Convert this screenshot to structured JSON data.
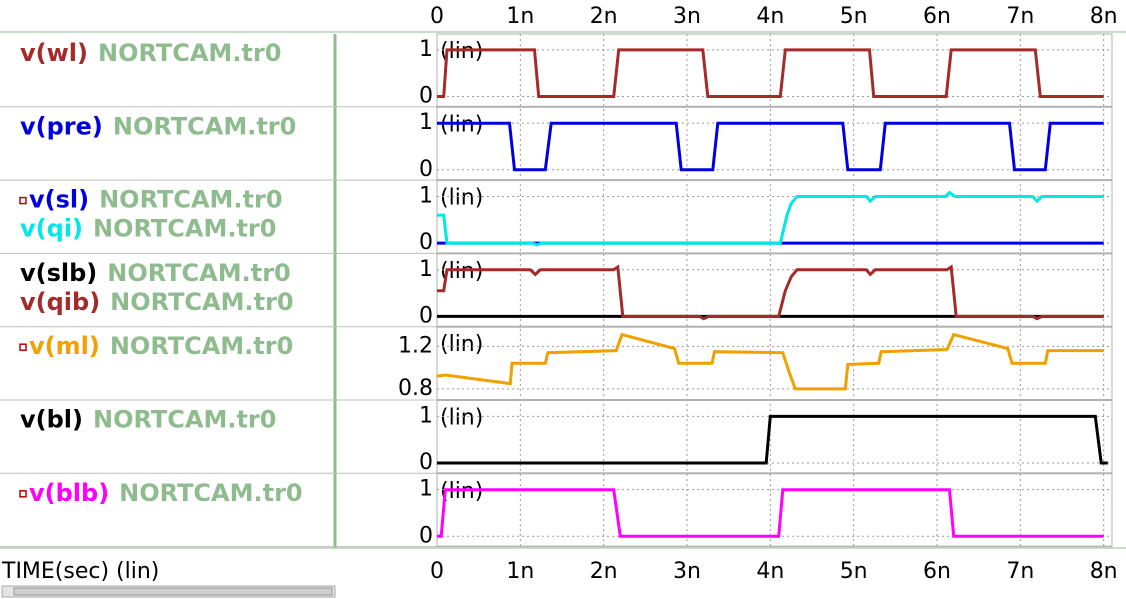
{
  "time_axis": {
    "label": "TIME(sec) (lin)",
    "xlim": [
      0,
      8.1e-09
    ],
    "xticks": [
      {
        "value": 0,
        "label": "0"
      },
      {
        "value": 1e-09,
        "label": "1n"
      },
      {
        "value": 2e-09,
        "label": "2n"
      },
      {
        "value": 3e-09,
        "label": "3n"
      },
      {
        "value": 4e-09,
        "label": "4n"
      },
      {
        "value": 5e-09,
        "label": "5n"
      },
      {
        "value": 6e-09,
        "label": "6n"
      },
      {
        "value": 7e-09,
        "label": "7n"
      },
      {
        "value": 8e-09,
        "label": "8n"
      }
    ]
  },
  "chart_data": [
    {
      "type": "line",
      "scale_label": "(lin)",
      "ylim": [
        -0.21,
        1.34
      ],
      "yticks": [
        0,
        1
      ],
      "grid": true,
      "series": [
        {
          "name": "v(wl)",
          "file": "NORTCAM.tr0",
          "color": "#a52a2a",
          "x": [
            0,
            8e-11,
            1.2e-10,
            1.17e-09,
            1.22e-09,
            2.12e-09,
            2.18e-09,
            3.19e-09,
            3.25e-09,
            4.12e-09,
            4.18e-09,
            5.19e-09,
            5.24e-09,
            6.11e-09,
            6.17e-09,
            7.18e-09,
            7.24e-09,
            8e-09
          ],
          "values": [
            0,
            0,
            1,
            1,
            0,
            0,
            1,
            1,
            0,
            0,
            1,
            1,
            0,
            0,
            1,
            1,
            0,
            0
          ]
        }
      ]
    },
    {
      "type": "line",
      "scale_label": "(lin)",
      "ylim": [
        -0.21,
        1.34
      ],
      "yticks": [
        0,
        1
      ],
      "grid": true,
      "series": [
        {
          "name": "v(pre)",
          "file": "NORTCAM.tr0",
          "color": "#0000e0",
          "x": [
            0,
            8.7e-10,
            9.3e-10,
            1.3e-09,
            1.37e-09,
            2.87e-09,
            2.93e-09,
            3.31e-09,
            3.37e-09,
            4.87e-09,
            4.93e-09,
            5.32e-09,
            5.38e-09,
            6.87e-09,
            6.93e-09,
            7.3e-09,
            7.36e-09,
            8e-09
          ],
          "values": [
            1,
            1,
            0,
            0,
            1,
            1,
            0,
            0,
            1,
            1,
            0,
            0,
            1,
            1,
            0,
            0,
            1,
            1
          ]
        }
      ]
    },
    {
      "type": "line",
      "scale_label": "(lin)",
      "ylim": [
        -0.21,
        1.34
      ],
      "yticks": [
        0,
        1
      ],
      "grid": true,
      "series": [
        {
          "name": "v(sl)",
          "file": "NORTCAM.tr0",
          "color": "#0000e0",
          "x": [
            0,
            8e-09
          ],
          "values": [
            0,
            0
          ]
        },
        {
          "name": "v(qi)",
          "file": "NORTCAM.tr0",
          "color": "#00e8e8",
          "x": [
            0,
            8e-11,
            1.2e-10,
            1.15e-09,
            1.2e-09,
            1.25e-09,
            4.12e-09,
            4.2e-09,
            4.25e-09,
            4.32e-09,
            5.15e-09,
            5.2e-09,
            5.26e-09,
            6.1e-09,
            6.15e-09,
            6.22e-09,
            7.15e-09,
            7.2e-09,
            7.26e-09,
            8e-09
          ],
          "values": [
            0.6,
            0.6,
            0,
            0,
            -0.04,
            0,
            0,
            0.6,
            0.85,
            1,
            1,
            0.9,
            1,
            1,
            1.08,
            1,
            1,
            0.9,
            1,
            1
          ]
        }
      ]
    },
    {
      "type": "line",
      "scale_label": "(lin)",
      "ylim": [
        -0.21,
        1.34
      ],
      "yticks": [
        0,
        1
      ],
      "grid": true,
      "series": [
        {
          "name": "v(slb)",
          "file": "NORTCAM.tr0",
          "color": "#000000",
          "x": [
            0,
            8e-09
          ],
          "values": [
            0,
            0
          ]
        },
        {
          "name": "v(qib)",
          "file": "NORTCAM.tr0",
          "color": "#a52a2a",
          "x": [
            0,
            8e-11,
            1.2e-10,
            1.12e-09,
            1.18e-09,
            1.24e-09,
            2.12e-09,
            2.17e-09,
            2.23e-09,
            3.15e-09,
            3.2e-09,
            3.26e-09,
            4.1e-09,
            4.18e-09,
            4.25e-09,
            4.32e-09,
            5.15e-09,
            5.2e-09,
            5.26e-09,
            6.12e-09,
            6.17e-09,
            6.23e-09,
            7.15e-09,
            7.2e-09,
            7.26e-09,
            8e-09
          ],
          "values": [
            0.55,
            0.55,
            1,
            1,
            0.9,
            1,
            1,
            1.06,
            0,
            0,
            -0.05,
            0,
            0,
            0.55,
            0.85,
            1,
            1,
            0.9,
            1,
            1,
            1.06,
            0,
            0,
            -0.05,
            0,
            0
          ]
        }
      ]
    },
    {
      "type": "line",
      "scale_label": "(lin)",
      "ylim": [
        0.7,
        1.38
      ],
      "yticks": [
        0.8,
        1.2
      ],
      "grid": true,
      "series": [
        {
          "name": "v(ml)",
          "file": "NORTCAM.tr0",
          "color": "#f0a000",
          "x": [
            0,
            1e-10,
            8.8e-10,
            9e-10,
            1.3e-09,
            1.33e-09,
            2.15e-09,
            2.22e-09,
            2.85e-09,
            2.9e-09,
            3.3e-09,
            3.33e-09,
            4.15e-09,
            4.22e-09,
            4.3e-09,
            4.9e-09,
            4.93e-09,
            5.3e-09,
            5.33e-09,
            6.12e-09,
            6.2e-09,
            6.85e-09,
            6.9e-09,
            7.3e-09,
            7.33e-09,
            8e-09
          ],
          "values": [
            0.92,
            0.93,
            0.85,
            1.04,
            1.04,
            1.14,
            1.16,
            1.31,
            1.18,
            1.04,
            1.04,
            1.15,
            1.14,
            0.97,
            0.8,
            0.8,
            1.03,
            1.04,
            1.15,
            1.17,
            1.31,
            1.18,
            1.04,
            1.04,
            1.16,
            1.16
          ]
        }
      ]
    },
    {
      "type": "line",
      "scale_label": "(lin)",
      "ylim": [
        -0.21,
        1.34
      ],
      "yticks": [
        0,
        1
      ],
      "grid": true,
      "series": [
        {
          "name": "v(bl)",
          "file": "NORTCAM.tr0",
          "color": "#000000",
          "x": [
            0,
            3.95e-09,
            4e-09,
            7.9e-09,
            7.97e-09,
            8.05e-09
          ],
          "values": [
            0,
            0,
            1,
            1,
            0,
            0
          ]
        }
      ]
    },
    {
      "type": "line",
      "scale_label": "(lin)",
      "ylim": [
        -0.21,
        1.34
      ],
      "yticks": [
        0,
        1
      ],
      "grid": true,
      "series": [
        {
          "name": "v(blb)",
          "file": "NORTCAM.tr0",
          "color": "#ff00ff",
          "x": [
            0,
            5e-11,
            1e-10,
            2.12e-09,
            2.2e-09,
            4.1e-09,
            4.15e-09,
            6.15e-09,
            6.2e-09,
            8e-09
          ],
          "values": [
            0,
            0,
            1,
            1,
            0,
            0,
            1,
            1,
            0,
            0
          ]
        }
      ]
    }
  ]
}
